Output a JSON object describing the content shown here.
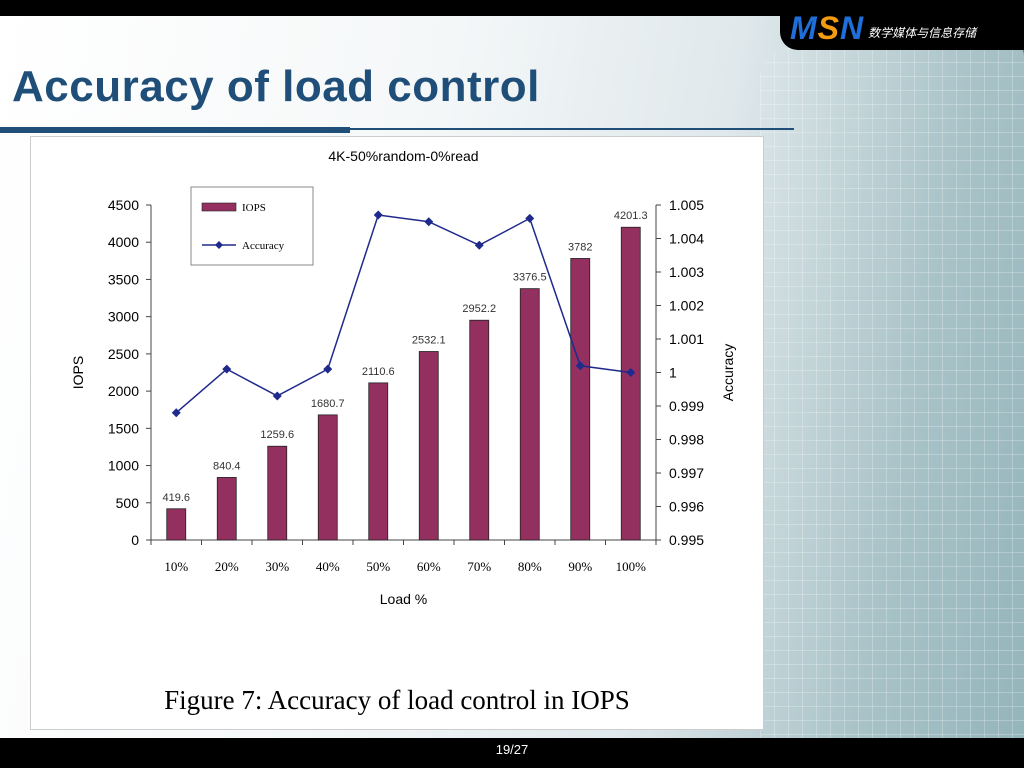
{
  "header": {
    "logo_text": "MSN",
    "logo_subtitle": "数学媒体与信息存储",
    "brand_colors": {
      "m": "#1e6fd9",
      "s": "#f39c12",
      "n": "#1e6fd9"
    }
  },
  "slide": {
    "title": "Accuracy of load control",
    "title_color": "#1f4e79",
    "page_number": "19/27"
  },
  "figure": {
    "caption": "Figure 7:  Accuracy of load control in IOPS"
  },
  "chart_data": {
    "type": "bar",
    "title": "4K-50%random-0%read",
    "xlabel": "Load %",
    "ylabel": "IOPS",
    "y2label": "Accuracy",
    "categories": [
      "10%",
      "20%",
      "30%",
      "40%",
      "50%",
      "60%",
      "70%",
      "80%",
      "90%",
      "100%"
    ],
    "ylim": [
      0,
      4500
    ],
    "yticks": [
      "0",
      "500",
      "1000",
      "1500",
      "2000",
      "2500",
      "3000",
      "3500",
      "4000",
      "4500"
    ],
    "y2lim": [
      0.995,
      1.005
    ],
    "y2ticks": [
      "0.995",
      "0.996",
      "0.997",
      "0.998",
      "0.999",
      "1",
      "1.001",
      "1.002",
      "1.003",
      "1.004",
      "1.005"
    ],
    "legend_position": "top-left",
    "series": [
      {
        "name": "IOPS",
        "type": "bar",
        "color": "#93305f",
        "values": [
          419.6,
          840.4,
          1259.6,
          1680.7,
          2110.6,
          2532.1,
          2952.2,
          3376.5,
          3782,
          4201.3
        ],
        "labels": [
          "419.6",
          "840.4",
          "1259.6",
          "1680.7",
          "2110.6",
          "2532.1",
          "2952.2",
          "3376.5",
          "3782",
          "4201.3"
        ]
      },
      {
        "name": "Accuracy",
        "type": "line",
        "axis": "right",
        "color": "#1f2a8c",
        "values": [
          0.9988,
          1.0001,
          0.9993,
          1.0001,
          1.0047,
          1.0045,
          1.0038,
          1.0046,
          1.0002,
          1.0
        ]
      }
    ]
  }
}
